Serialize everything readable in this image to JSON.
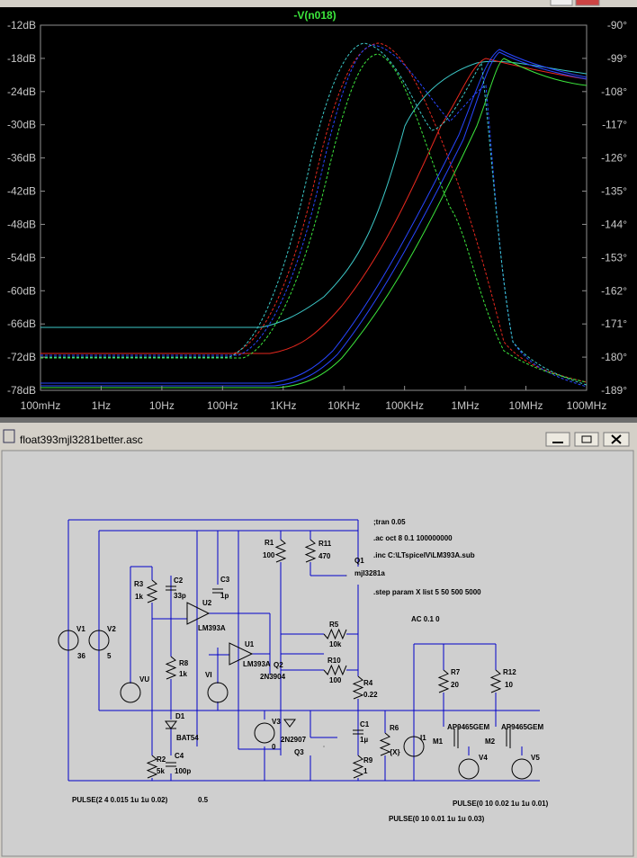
{
  "waveform": {
    "trace_label": "-V(n018)",
    "y_left_labels": [
      "-12dB",
      "-18dB",
      "-24dB",
      "-30dB",
      "-36dB",
      "-42dB",
      "-48dB",
      "-54dB",
      "-60dB",
      "-66dB",
      "-72dB",
      "-78dB"
    ],
    "y_right_labels": [
      "-90°",
      "-99°",
      "-108°",
      "-117°",
      "-126°",
      "-135°",
      "-144°",
      "-153°",
      "-162°",
      "-171°",
      "-180°",
      "-189°"
    ],
    "x_labels": [
      "100mHz",
      "1Hz",
      "10Hz",
      "100Hz",
      "1KHz",
      "10KHz",
      "100KHz",
      "1MHz",
      "10MHz",
      "100MHz"
    ]
  },
  "schematic": {
    "title": "float393mjl3281better.asc",
    "labels": [
      ";tran 0.05",
      ".ac oct 8 0.1 100000000",
      ".inc C:\\LTspiceIV\\LM393A.sub",
      ".step param X list 5 50 500 5000",
      "AC 0.1 0",
      "R1",
      "100",
      "R11",
      "470",
      "Q1",
      "mjl3281a",
      "R3",
      "1k",
      "C2",
      "33p",
      "C3",
      "1p",
      "U2",
      "LM393A",
      "V1",
      "36",
      "V2",
      "5",
      "R5",
      "10k",
      "U1",
      "LM393A",
      "Q2",
      "2N3904",
      "R10",
      "100",
      "R8",
      "1k",
      "VU",
      "VI",
      "R7",
      "20",
      "R12",
      "10",
      "R4",
      "0.22",
      "D1",
      "BAT54",
      "V3",
      "0",
      "C1",
      "1µ",
      "R6",
      "{X}",
      "I1",
      "AP9465GEM",
      "AP9465GEM",
      "2N2907",
      "Q3",
      "M1",
      "M2",
      "C4",
      "100p",
      "R2",
      "5k",
      "R9",
      "1",
      "V4",
      "V5",
      "PULSE(2 4 0.015 1u 1u 0.02)",
      "0.5",
      "PULSE(0 10 0.02 1u 1u 0.01)",
      "PULSE(0 10 0.01 1u 1u 0.03)"
    ]
  }
}
